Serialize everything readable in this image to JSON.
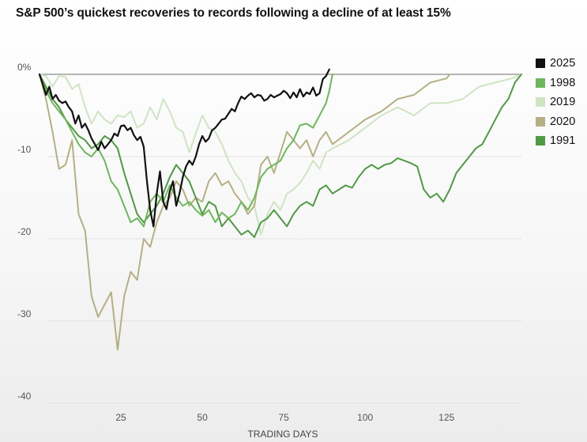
{
  "chart_data": {
    "type": "line",
    "title": "S&P 500’s quickest recoveries to records following a decline of at least 15%",
    "xlabel": "TRADING DAYS",
    "ylabel": "",
    "xlim": [
      0,
      148
    ],
    "ylim": [
      -40,
      0
    ],
    "xticks": [
      25,
      50,
      75,
      100,
      125
    ],
    "yticks": [
      0,
      -10,
      -20,
      -30,
      -40
    ],
    "ytick_labels": [
      "0%",
      "-10",
      "-20",
      "-30",
      "-40"
    ],
    "grid": "horizontal",
    "legend_position": "right",
    "series": [
      {
        "name": "2025",
        "color": "#111111",
        "x": [
          0,
          1,
          2,
          3,
          4,
          5,
          6,
          7,
          8,
          9,
          10,
          11,
          12,
          13,
          14,
          15,
          16,
          17,
          18,
          19,
          20,
          21,
          22,
          23,
          24,
          25,
          26,
          27,
          28,
          29,
          30,
          31,
          32,
          33,
          34,
          35,
          36,
          37,
          38,
          39,
          40,
          41,
          42,
          43,
          44,
          45,
          46,
          47,
          48,
          49,
          50,
          51,
          52,
          53,
          54,
          55,
          56,
          57,
          58,
          59,
          60,
          61,
          62,
          63,
          64,
          65,
          66,
          67,
          68,
          69,
          70,
          71,
          72,
          73,
          74,
          75,
          76,
          77,
          78,
          79,
          80,
          81,
          82,
          83,
          84,
          85,
          86,
          87,
          88,
          89
        ],
        "y": [
          0,
          -1.2,
          -2.5,
          -1.5,
          -3,
          -2.5,
          -3.2,
          -3.5,
          -3.3,
          -4,
          -4.5,
          -6,
          -5,
          -6.5,
          -6,
          -6.8,
          -7.8,
          -8.5,
          -9.2,
          -8.2,
          -9,
          -8.5,
          -8,
          -7.2,
          -7.5,
          -6.3,
          -6.2,
          -6.8,
          -6.5,
          -7.4,
          -8,
          -7.6,
          -8.8,
          -13,
          -16.5,
          -18.5,
          -14.5,
          -11.8,
          -15.5,
          -16.4,
          -14.2,
          -13,
          -16,
          -14.5,
          -12.5,
          -11.2,
          -10.5,
          -11,
          -10,
          -8.5,
          -7.5,
          -8.2,
          -7.8,
          -6.8,
          -6.5,
          -6,
          -5.5,
          -5.4,
          -4.8,
          -4.2,
          -4.5,
          -3.5,
          -2.7,
          -3,
          -2.6,
          -2.3,
          -2.8,
          -2.5,
          -2.6,
          -3.2,
          -3,
          -2.5,
          -2.8,
          -2.6,
          -2.4,
          -2,
          -2.3,
          -2.9,
          -2.2,
          -2.8,
          -1.8,
          -2.7,
          -2.2,
          -2.4,
          -1.6,
          -2.6,
          -2.3,
          -0.6,
          -0.2,
          0.6
        ]
      },
      {
        "name": "1998",
        "color": "#6db85c",
        "x": [
          0,
          2,
          4,
          6,
          8,
          10,
          12,
          14,
          16,
          18,
          20,
          22,
          24,
          26,
          28,
          30,
          32,
          34,
          36,
          38,
          40,
          42,
          44,
          46,
          48,
          50,
          52,
          54,
          56,
          58,
          60,
          62,
          64,
          66,
          68,
          70,
          72,
          74,
          76,
          78,
          80,
          82,
          84,
          86,
          88,
          89,
          90
        ],
        "y": [
          0,
          -2,
          -3.5,
          -4.5,
          -5.5,
          -7,
          -8.5,
          -9.5,
          -10,
          -9,
          -10.5,
          -13,
          -14,
          -16,
          -18,
          -17.5,
          -18.5,
          -15.5,
          -14.5,
          -15.5,
          -13.5,
          -15,
          -16,
          -15.5,
          -16.5,
          -17.2,
          -16.5,
          -18,
          -16.8,
          -17.5,
          -17,
          -15.5,
          -16.5,
          -15,
          -12.5,
          -11.5,
          -11,
          -10.5,
          -9,
          -8,
          -6.2,
          -6,
          -6.5,
          -5,
          -3.5,
          -2,
          0
        ]
      },
      {
        "name": "2019",
        "color": "#cfe4c3",
        "x": [
          0,
          2,
          4,
          6,
          8,
          10,
          12,
          14,
          16,
          18,
          20,
          22,
          24,
          26,
          28,
          30,
          32,
          34,
          36,
          38,
          40,
          42,
          44,
          46,
          48,
          50,
          52,
          54,
          56,
          58,
          60,
          62,
          64,
          66,
          68,
          70,
          72,
          74,
          76,
          78,
          80,
          82,
          84,
          86,
          88,
          90,
          95,
          100,
          105,
          110,
          115,
          120,
          125,
          130,
          135,
          140,
          145,
          148
        ],
        "y": [
          0,
          -0.2,
          -1.5,
          -0.2,
          -0.3,
          -1.8,
          -1.2,
          -4,
          -6,
          -4.5,
          -5.5,
          -6,
          -5,
          -5.2,
          -4.5,
          -6.5,
          -6,
          -4,
          -5.5,
          -3,
          -4.5,
          -6.5,
          -7,
          -9.5,
          -7.2,
          -5,
          -6.5,
          -7,
          -8.5,
          -10.5,
          -12,
          -13,
          -15,
          -16,
          -19.5,
          -17,
          -15.5,
          -16.5,
          -14.5,
          -14,
          -13.2,
          -12,
          -10.5,
          -11.5,
          -9.5,
          -9,
          -8,
          -6.5,
          -5,
          -4,
          -5,
          -3.5,
          -3.5,
          -3,
          -1.5,
          -1,
          -0.5,
          0
        ]
      },
      {
        "name": "2020",
        "color": "#b5b083",
        "x": [
          0,
          2,
          4,
          6,
          8,
          10,
          12,
          14,
          16,
          18,
          20,
          22,
          24,
          26,
          28,
          30,
          32,
          34,
          36,
          38,
          40,
          42,
          44,
          46,
          48,
          50,
          52,
          54,
          56,
          58,
          60,
          62,
          64,
          66,
          68,
          70,
          72,
          74,
          76,
          78,
          80,
          82,
          84,
          86,
          88,
          90,
          95,
          100,
          105,
          110,
          115,
          120,
          125,
          126
        ],
        "y": [
          0,
          -3,
          -7,
          -11.5,
          -11,
          -8,
          -17,
          -19,
          -27,
          -29.5,
          -28,
          -26.5,
          -33.5,
          -27,
          -24,
          -25,
          -20,
          -21,
          -18,
          -16,
          -15,
          -13,
          -14,
          -16,
          -15,
          -15.5,
          -13,
          -12,
          -13.5,
          -13,
          -14.5,
          -15.5,
          -17,
          -16,
          -11,
          -10,
          -12,
          -9.5,
          -7,
          -8,
          -9,
          -8,
          -10,
          -8,
          -7,
          -8.5,
          -7,
          -5.5,
          -4.5,
          -3,
          -2.5,
          -1,
          -0.5,
          0
        ]
      },
      {
        "name": "1991",
        "color": "#4f9a43",
        "x": [
          0,
          2,
          4,
          6,
          8,
          10,
          12,
          14,
          16,
          18,
          20,
          22,
          24,
          26,
          28,
          30,
          32,
          34,
          36,
          38,
          40,
          42,
          44,
          46,
          48,
          50,
          52,
          54,
          56,
          58,
          60,
          62,
          64,
          66,
          68,
          70,
          72,
          74,
          76,
          78,
          80,
          82,
          84,
          86,
          88,
          90,
          92,
          94,
          96,
          98,
          100,
          102,
          104,
          106,
          108,
          110,
          112,
          114,
          116,
          118,
          120,
          122,
          124,
          126,
          128,
          130,
          132,
          134,
          136,
          138,
          140,
          142,
          144,
          146,
          148
        ],
        "y": [
          0,
          -1.5,
          -3,
          -4,
          -5.5,
          -6.5,
          -7.5,
          -8,
          -9,
          -8.5,
          -7.5,
          -8,
          -9,
          -12,
          -14.5,
          -17,
          -18,
          -17,
          -16,
          -14.5,
          -12.5,
          -11,
          -12,
          -13,
          -15,
          -17,
          -15.5,
          -16,
          -18.5,
          -17.5,
          -18.5,
          -19.5,
          -19,
          -19.8,
          -18,
          -17.5,
          -16.5,
          -17.5,
          -18.5,
          -17,
          -16,
          -15.5,
          -16,
          -14,
          -13.5,
          -14.5,
          -14,
          -13.5,
          -13.8,
          -12.5,
          -11.5,
          -11,
          -11.5,
          -11,
          -10.8,
          -10.2,
          -10.5,
          -10.8,
          -11.2,
          -14,
          -15,
          -14.5,
          -15.5,
          -14,
          -12,
          -11,
          -10,
          -9,
          -8.5,
          -7,
          -5.5,
          -4,
          -3,
          -1,
          0
        ]
      }
    ]
  },
  "legend": [
    {
      "label": "2025",
      "color": "#111111"
    },
    {
      "label": "1998",
      "color": "#6db85c"
    },
    {
      "label": "2019",
      "color": "#cfe4c3"
    },
    {
      "label": "2020",
      "color": "#b5b083"
    },
    {
      "label": "1991",
      "color": "#4f9a43"
    }
  ]
}
